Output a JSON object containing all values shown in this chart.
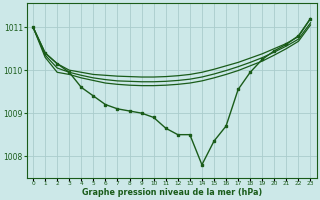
{
  "xlabel": "Graphe pression niveau de la mer (hPa)",
  "bg_color": "#cce8e8",
  "grid_color": "#aacccc",
  "line_color": "#1a5c1a",
  "hours": [
    0,
    1,
    2,
    3,
    4,
    5,
    6,
    7,
    8,
    9,
    10,
    11,
    12,
    13,
    14,
    15,
    16,
    17,
    18,
    19,
    20,
    21,
    22,
    23
  ],
  "series_main": [
    1011.0,
    1010.4,
    1010.15,
    1009.95,
    1009.6,
    1009.4,
    1009.2,
    1009.1,
    1009.05,
    1009.0,
    1008.9,
    1008.65,
    1008.5,
    1008.5,
    1007.8,
    1008.35,
    1008.7,
    1009.55,
    1009.95,
    1010.25,
    1010.45,
    1010.6,
    1010.8,
    1011.2
  ],
  "series_flat1": [
    1011.0,
    1010.4,
    1010.15,
    1010.0,
    1009.95,
    1009.9,
    1009.88,
    1009.86,
    1009.85,
    1009.84,
    1009.84,
    1009.85,
    1009.87,
    1009.9,
    1009.95,
    1010.02,
    1010.1,
    1010.18,
    1010.28,
    1010.38,
    1010.5,
    1010.62,
    1010.78,
    1011.2
  ],
  "series_flat2": [
    1011.0,
    1010.35,
    1010.05,
    1009.95,
    1009.88,
    1009.82,
    1009.78,
    1009.75,
    1009.74,
    1009.73,
    1009.73,
    1009.74,
    1009.76,
    1009.79,
    1009.84,
    1009.91,
    1009.99,
    1010.08,
    1010.18,
    1010.29,
    1010.42,
    1010.56,
    1010.72,
    1011.1
  ],
  "series_flat3": [
    1011.0,
    1010.3,
    1009.95,
    1009.9,
    1009.82,
    1009.76,
    1009.7,
    1009.67,
    1009.65,
    1009.64,
    1009.64,
    1009.65,
    1009.67,
    1009.7,
    1009.75,
    1009.82,
    1009.9,
    1009.99,
    1010.1,
    1010.21,
    1010.35,
    1010.5,
    1010.67,
    1011.05
  ],
  "ylim_min": 1007.5,
  "ylim_max": 1011.55,
  "yticks": [
    1008,
    1009,
    1010,
    1011
  ]
}
